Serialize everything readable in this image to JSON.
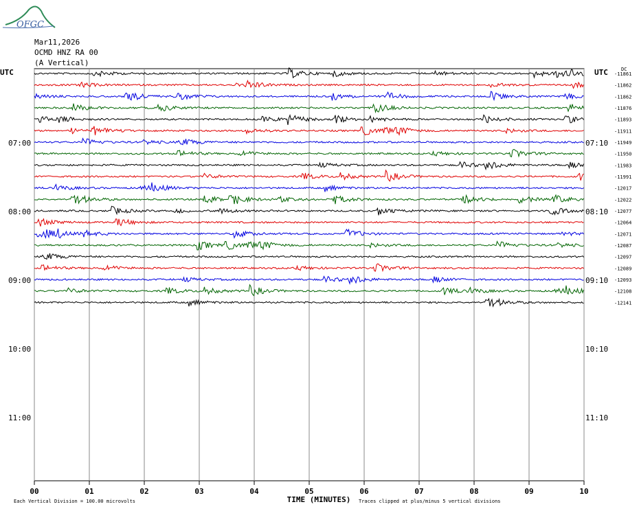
{
  "logo": "OFGC",
  "header": {
    "date": "Mar11,2026",
    "station": "OCMD HNZ RA 00",
    "component": "(A Vertical)"
  },
  "left_label": "UTC",
  "right_label": "UTC",
  "dc_label": "DC",
  "left_hours": [
    "07:00",
    "08:00",
    "09:00",
    "10:00",
    "11:00"
  ],
  "right_hours": [
    "07:10",
    "08:10",
    "09:10",
    "10:10",
    "11:10"
  ],
  "trace_offsets": [
    "-11861",
    "-11862",
    "-11862",
    "-11876",
    "-11893",
    "-11911",
    "-11949",
    "-11950",
    "-11983",
    "-11991",
    "-12017",
    "-12022",
    "-12077",
    "-12064",
    "-12071",
    "-12087",
    "-12097",
    "-12089",
    "-12093",
    "-12108",
    "-12141"
  ],
  "trace_colors": [
    "#000000",
    "#e00000",
    "#0000e0",
    "#006400"
  ],
  "time_axis": {
    "label": "TIME (MINUTES)",
    "ticks": [
      {
        "value": 0,
        "label": "00"
      },
      {
        "value": 1,
        "label": "01"
      },
      {
        "value": 2,
        "label": "02"
      },
      {
        "value": 3,
        "label": "03"
      },
      {
        "value": 4,
        "label": "04"
      },
      {
        "value": 5,
        "label": "05"
      },
      {
        "value": 6,
        "label": "06"
      },
      {
        "value": 7,
        "label": "07"
      },
      {
        "value": 8,
        "label": "08"
      },
      {
        "value": 9,
        "label": "09"
      },
      {
        "value": 10,
        "label": "10"
      }
    ]
  },
  "footer": {
    "scale": "Each Vertical Division =  100.00 microvolts",
    "clip": "Traces clipped at plus/minus 5 vertical divisions"
  }
}
